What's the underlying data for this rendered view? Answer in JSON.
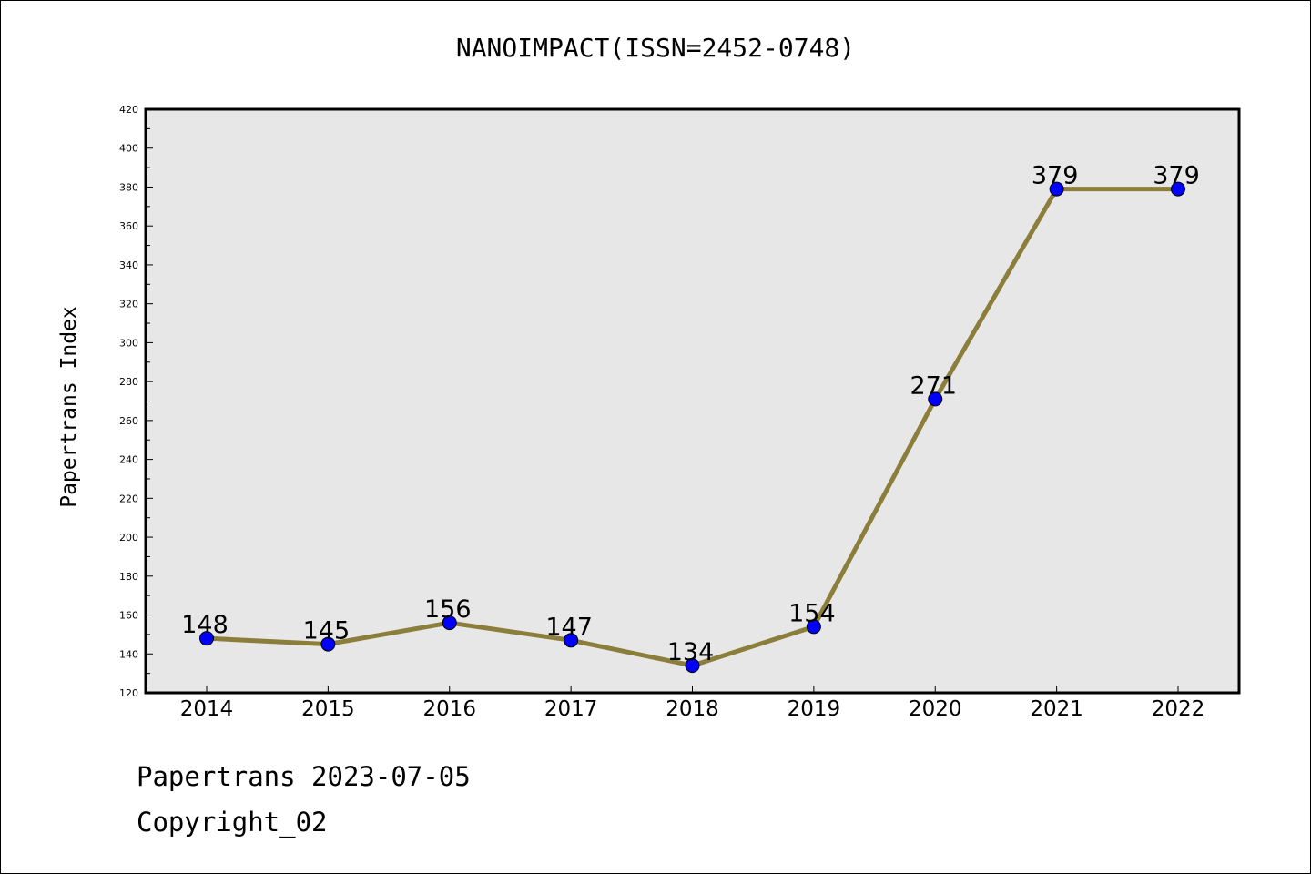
{
  "chart_data": {
    "type": "line",
    "title": "NANOIMPACT(ISSN=2452-0748)",
    "xlabel": "",
    "ylabel": "Papertrans Index",
    "categories": [
      "2014",
      "2015",
      "2016",
      "2017",
      "2018",
      "2019",
      "2020",
      "2021",
      "2022"
    ],
    "series": [
      {
        "values": [
          148,
          145,
          156,
          147,
          134,
          154,
          271,
          379,
          379
        ]
      }
    ],
    "data_labels": [
      "148",
      "145",
      "156",
      "147",
      "134",
      "154",
      "271",
      "379",
      "379"
    ],
    "ylim": [
      120,
      420
    ],
    "yticks": [
      "120",
      "140",
      "160",
      "180",
      "200",
      "220",
      "240",
      "260",
      "280",
      "300",
      "320",
      "340",
      "360",
      "380",
      "400",
      "420"
    ],
    "grid": false,
    "legend": "none",
    "colors": {
      "line": "#8b7d3a",
      "marker": "#0000ff",
      "plot_background": "#e7e7e7"
    }
  },
  "footer": {
    "date_line": "Papertrans 2023-07-05",
    "copyright": "Copyright_02"
  }
}
